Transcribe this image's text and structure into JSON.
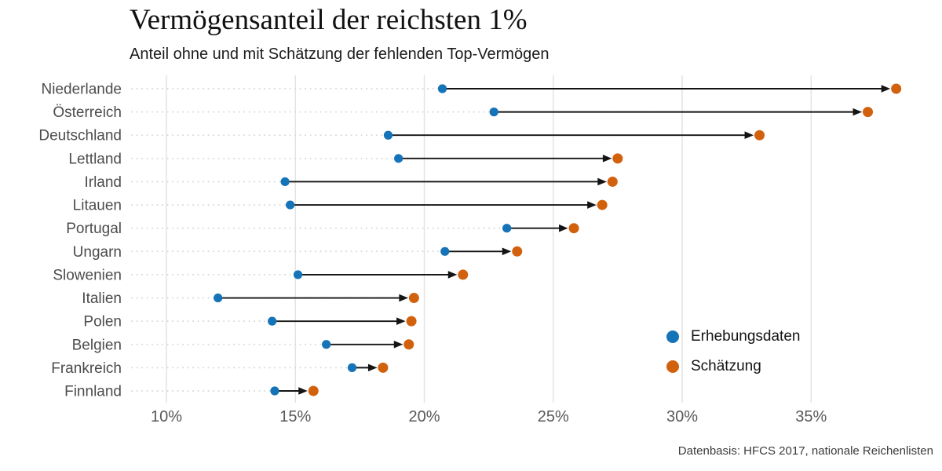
{
  "header": {
    "title": "Vermögensanteil der reichsten 1%",
    "subtitle": "Anteil ohne und mit Schätzung der fehlenden Top-Vermögen"
  },
  "legend": {
    "items": [
      {
        "label": "Erhebungsdaten",
        "color": "#1573b8"
      },
      {
        "label": "Schätzung",
        "color": "#d2610e"
      }
    ]
  },
  "footer": {
    "source": "Datenbasis: HFCS 2017, nationale Reichenlisten"
  },
  "chart_data": {
    "type": "dumbbell",
    "title": "Vermögensanteil der reichsten 1%",
    "subtitle": "Anteil ohne und mit Schätzung der fehlenden Top-Vermögen",
    "unit": "%",
    "categories": [
      "Niederlande",
      "Österreich",
      "Deutschland",
      "Lettland",
      "Irland",
      "Litauen",
      "Portugal",
      "Ungarn",
      "Slowenien",
      "Italien",
      "Polen",
      "Belgien",
      "Frankreich",
      "Finnland"
    ],
    "series": [
      {
        "name": "Erhebungsdaten",
        "color": "#1573b8",
        "values": [
          20.7,
          22.7,
          18.6,
          19.0,
          14.6,
          14.8,
          23.2,
          20.8,
          15.1,
          12.0,
          14.1,
          16.2,
          17.2,
          14.2
        ]
      },
      {
        "name": "Schätzung",
        "color": "#d2610e",
        "values": [
          38.3,
          37.2,
          33.0,
          27.5,
          27.3,
          26.9,
          25.8,
          23.6,
          21.5,
          19.6,
          19.5,
          19.4,
          18.4,
          15.7
        ]
      }
    ],
    "x_ticks": [
      10,
      15,
      20,
      25,
      30,
      35
    ],
    "x_tick_labels": [
      "10%",
      "15%",
      "20%",
      "25%",
      "30%",
      "35%"
    ],
    "xlim": [
      8.7,
      39.8
    ],
    "grid": "vertical-only",
    "legend_position": "right-middle",
    "annotation": "Pfeile zeigen von Erhebungsdaten zur Schätzung"
  }
}
